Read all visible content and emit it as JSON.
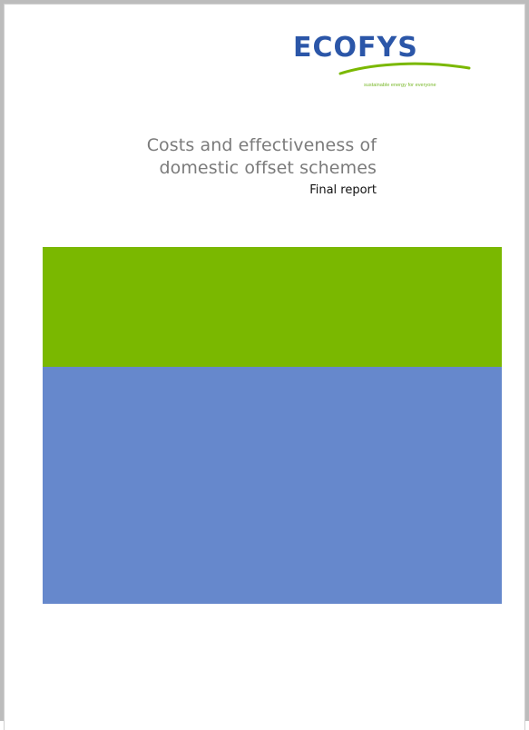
{
  "logo": {
    "wordmark": "ECOFYS",
    "tagline": "sustainable energy for everyone",
    "colors": {
      "wordmark": "#2b56a8",
      "swoosh": "#7ab800",
      "tagline": "#79b829"
    }
  },
  "title": {
    "line1": "Costs and effectiveness of",
    "line2": "domestic offset schemes",
    "subtitle": "Final report"
  },
  "colors": {
    "green_band": "#7ab800",
    "blue_band": "#6688cc",
    "title_text": "#7b7b7b"
  }
}
